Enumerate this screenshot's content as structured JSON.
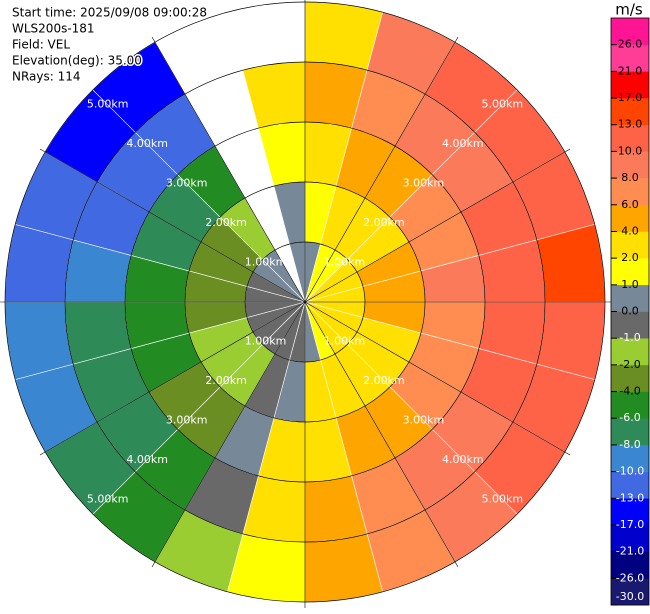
{
  "chart_data": {
    "type": "ppi",
    "header": [
      "Start time: 2025/09/08 09:00:28",
      "WLS200s-181",
      "Field: VEL",
      "Elevation(deg): 35.00",
      "NRays: 114"
    ],
    "azimuths": [
      7.5,
      22.5,
      37.5,
      52.5,
      67.5,
      82.5,
      97.5,
      112.5,
      127.5,
      142.5,
      157.5,
      172.5,
      187.5,
      202.5,
      217.5,
      232.5,
      247.5,
      262.5,
      277.5,
      292.5,
      307.5,
      322.5,
      337.5,
      352.5
    ],
    "ranges": [
      0.5,
      1.5,
      2.5,
      3.5,
      4.5
    ],
    "values": [
      [
        0,
        1,
        3,
        4,
        2
      ],
      [
        1,
        2,
        4,
        6,
        8
      ],
      [
        1,
        3,
        5,
        8,
        10
      ],
      [
        2,
        3,
        6,
        9,
        11
      ],
      [
        2,
        4,
        7,
        10,
        12
      ],
      [
        2,
        4,
        8,
        11,
        13
      ],
      [
        2,
        4,
        7,
        11,
        12
      ],
      [
        2,
        3,
        7,
        10,
        12
      ],
      [
        2,
        3,
        6,
        9,
        11
      ],
      [
        2,
        3,
        5,
        8,
        9
      ],
      [
        1,
        2,
        4,
        6,
        7
      ],
      [
        0,
        2,
        3,
        4,
        5
      ],
      [
        -1,
        0,
        2,
        2,
        1
      ],
      [
        -1,
        -1,
        0,
        -1,
        -2
      ],
      [
        -1,
        -2,
        -3,
        -5,
        -6
      ],
      [
        -1,
        -2,
        -4,
        -7,
        -8
      ],
      [
        -1,
        -2,
        -5,
        -7,
        -9
      ],
      [
        -1,
        -3,
        -5,
        -8,
        -9
      ],
      [
        -1,
        -3,
        -6,
        -9,
        -11
      ],
      [
        -1,
        -3,
        -7,
        -11,
        -13
      ],
      [
        0,
        -3,
        -8,
        -12,
        -14
      ],
      [
        0,
        -2,
        -6,
        -13,
        -15
      ],
      [
        null,
        null,
        null,
        null,
        null
      ],
      [
        0,
        0,
        1,
        2,
        null
      ]
    ],
    "rings": [
      {
        "value": 1,
        "label": "1.00km"
      },
      {
        "value": 2,
        "label": "2.00km"
      },
      {
        "value": 3,
        "label": "3.00km"
      },
      {
        "value": 4,
        "label": "4.00km"
      },
      {
        "value": 5,
        "label": "5.00km"
      }
    ],
    "colorbar": {
      "title": "m/s",
      "levels": [
        -30,
        -26,
        -21,
        -17,
        -13,
        -10,
        -8,
        -6,
        -4,
        -2,
        -1,
        0,
        1,
        2,
        4,
        6,
        8,
        10,
        13,
        17,
        21,
        26,
        30
      ],
      "colors": [
        "#191970",
        "#000080",
        "#0000cd",
        "#0000ff",
        "#4169e1",
        "#3a86d0",
        "#2e8b57",
        "#228b22",
        "#6b8e23",
        "#9acd32",
        "#696969",
        "#778899",
        "#ffff00",
        "#ffe000",
        "#ffa500",
        "#ff8c50",
        "#fa7a5a",
        "#ff6347",
        "#ff4500",
        "#ff0000",
        "#ff3c96",
        "#ff1493"
      ],
      "yticks": [
        {
          "value": -30,
          "label": "-30.0"
        },
        {
          "value": -26,
          "label": "-26.0"
        },
        {
          "value": -21,
          "label": "-21.0"
        },
        {
          "value": -17,
          "label": "-17.0"
        },
        {
          "value": -13,
          "label": "-13.0"
        },
        {
          "value": -10,
          "label": "-10.0"
        },
        {
          "value": -8,
          "label": "-8.0"
        },
        {
          "value": -6,
          "label": "-6.0"
        },
        {
          "value": -4,
          "label": "-4.0"
        },
        {
          "value": -2,
          "label": "-2.0"
        },
        {
          "value": -1,
          "label": "-1.0"
        },
        {
          "value": 0,
          "label": "0.0"
        },
        {
          "value": 1,
          "label": "1.0"
        },
        {
          "value": 2,
          "label": "2.0"
        },
        {
          "value": 4,
          "label": "4.0"
        },
        {
          "value": 6,
          "label": "6.0"
        },
        {
          "value": 8,
          "label": "8.0"
        },
        {
          "value": 10,
          "label": "10.0"
        },
        {
          "value": 13,
          "label": "13.0"
        },
        {
          "value": 17,
          "label": "17.0"
        },
        {
          "value": 21,
          "label": "21.0"
        },
        {
          "value": 26,
          "label": "26.0"
        }
      ]
    }
  }
}
